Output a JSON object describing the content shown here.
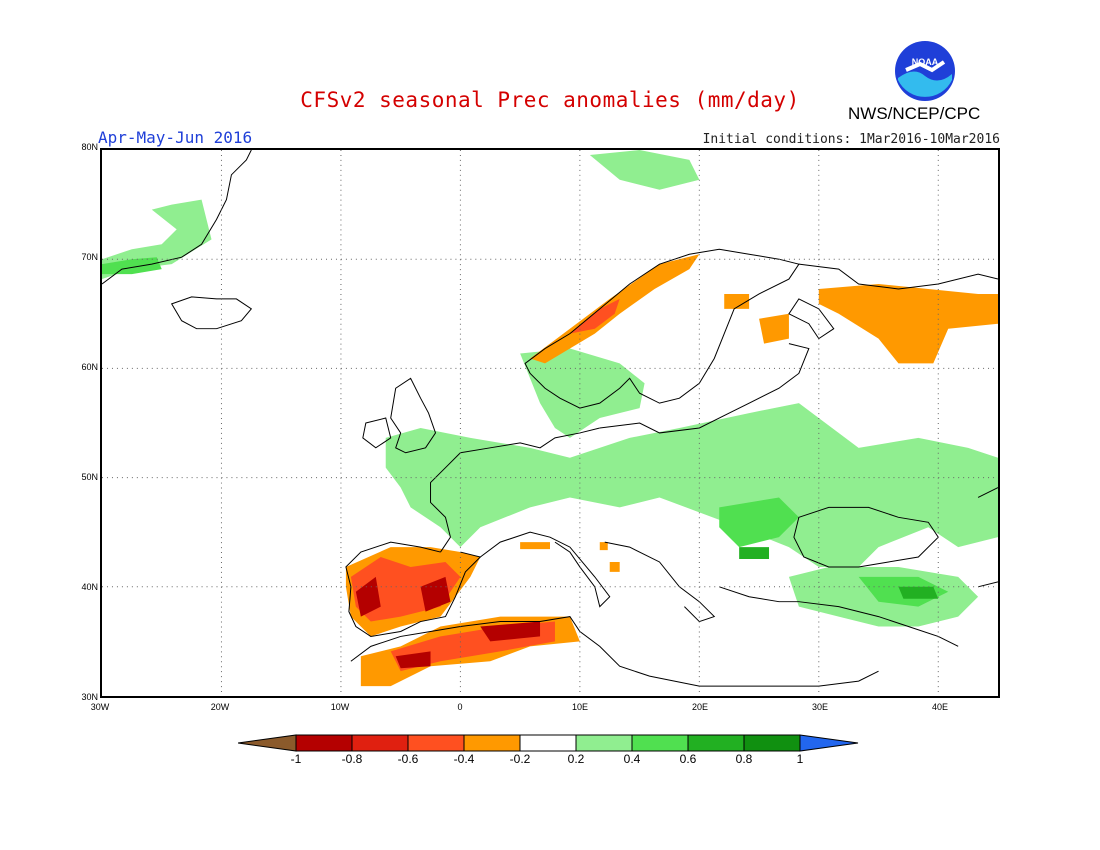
{
  "header": {
    "title": "CFSv2 seasonal Prec anomalies (mm/day)",
    "period": "Apr-May-Jun 2016",
    "initial_conditions": "Initial conditions: 1Mar2016-10Mar2016",
    "agency": "NWS/NCEP/CPC",
    "logo_text": "NOAA"
  },
  "map": {
    "lon_range": [
      -30,
      45
    ],
    "lat_range": [
      30,
      80
    ],
    "lon_ticks": [
      "30W",
      "20W",
      "10W",
      "0",
      "10E",
      "20E",
      "30E",
      "40E"
    ],
    "lat_ticks": [
      "80N",
      "70N",
      "60N",
      "50N",
      "40N",
      "30N"
    ],
    "grid": "dotted"
  },
  "colorbar": {
    "labels": [
      "-1",
      "-0.8",
      "-0.6",
      "-0.4",
      "-0.2",
      "0.2",
      "0.4",
      "0.6",
      "0.8",
      "1"
    ],
    "colors": [
      "#8b5a2b",
      "#b40000",
      "#e02010",
      "#ff5020",
      "#ff9900",
      "#ffffff",
      "#90ee90",
      "#50e050",
      "#22b022",
      "#109010",
      "#2266ee"
    ]
  },
  "anomalies": {
    "dry": {
      "weak": "#ff9900",
      "moderate": "#ff5020",
      "strong": "#e02010",
      "very_strong": "#b40000"
    },
    "wet": {
      "weak": "#90ee90",
      "moderate": "#50e050",
      "strong": "#22b022"
    }
  }
}
